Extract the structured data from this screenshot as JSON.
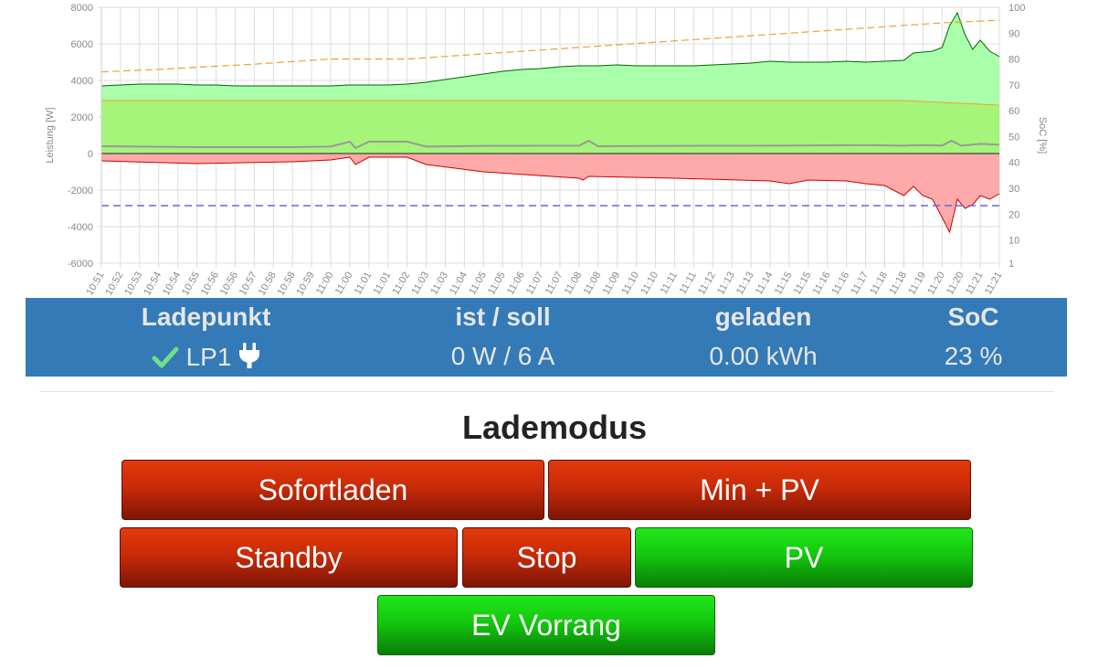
{
  "chart_data": {
    "type": "area",
    "ylabel_left": "Leistung [W]",
    "ylabel_right": "SoC [%]",
    "left_ticks": [
      8000,
      6000,
      4000,
      2000,
      0,
      -2000,
      -4000,
      -6000
    ],
    "right_ticks": [
      100,
      90,
      80,
      70,
      60,
      50,
      40,
      30,
      20,
      10,
      1
    ],
    "ylim_left": [
      -6000,
      8000
    ],
    "ylim_right": [
      1,
      100
    ],
    "grid": true,
    "x_ticks": [
      "10:51",
      "10:52",
      "10:53",
      "10:54",
      "10:54",
      "10:55",
      "10:56",
      "10:56",
      "10:57",
      "10:58",
      "10:58",
      "10:59",
      "11:00",
      "11:00",
      "11:01",
      "11:01",
      "11:02",
      "11:03",
      "11:03",
      "11:04",
      "11:05",
      "11:05",
      "11:06",
      "11:07",
      "11:07",
      "11:08",
      "11:08",
      "11:09",
      "11:10",
      "11:10",
      "11:11",
      "11:11",
      "11:12",
      "11:13",
      "11:13",
      "11:14",
      "11:15",
      "11:15",
      "11:16",
      "11:16",
      "11:17",
      "11:18",
      "11:18",
      "11:19",
      "11:20",
      "11:20",
      "11:21",
      "11:21"
    ],
    "series": [
      {
        "kind": "pv",
        "fill": "#aaffaa",
        "stroke": "#006600",
        "x": [
          0,
          1,
          2,
          3,
          4,
          5,
          6,
          7,
          8,
          9,
          10,
          11,
          12,
          13,
          14,
          15,
          16,
          17,
          18,
          19,
          20,
          21,
          22,
          23,
          24,
          25,
          26,
          27,
          28,
          29,
          30,
          31,
          32,
          33,
          34,
          35,
          36,
          37,
          38,
          39,
          40,
          41,
          42,
          42.5,
          43,
          43.5,
          44,
          44.4,
          44.8,
          45.2,
          45.6,
          46,
          46.5,
          47
        ],
        "values": [
          3700,
          3750,
          3800,
          3800,
          3800,
          3750,
          3750,
          3700,
          3700,
          3700,
          3700,
          3700,
          3700,
          3750,
          3750,
          3750,
          3800,
          3900,
          4050,
          4200,
          4350,
          4500,
          4600,
          4650,
          4750,
          4800,
          4800,
          4850,
          4800,
          4800,
          4800,
          4800,
          4850,
          4900,
          4950,
          5050,
          5000,
          5000,
          5000,
          5050,
          5000,
          5050,
          5100,
          5500,
          5550,
          5600,
          5800,
          7000,
          7700,
          6500,
          5700,
          6200,
          5600,
          5300
        ]
      },
      {
        "kind": "charging",
        "fill": "#a5f57a",
        "stroke": "#f0a030",
        "x": [
          0,
          42,
          47
        ],
        "values": [
          2900,
          2900,
          2650
        ]
      },
      {
        "kind": "load",
        "fill": "none",
        "stroke": "#999999",
        "x": [
          0,
          5,
          10,
          12,
          13,
          13.3,
          14,
          16,
          17,
          20,
          25,
          25.5,
          26,
          30,
          35,
          40,
          42,
          43,
          44,
          44.5,
          45,
          46,
          47
        ],
        "values": [
          400,
          350,
          350,
          380,
          650,
          300,
          650,
          650,
          380,
          420,
          430,
          700,
          400,
          420,
          430,
          460,
          430,
          460,
          440,
          700,
          430,
          530,
          480
        ]
      },
      {
        "kind": "grid",
        "fill": "#ffaaaa",
        "stroke": "#cc0000",
        "x": [
          0,
          5,
          10,
          12,
          13,
          13.3,
          14,
          16,
          17,
          20,
          25,
          25.2,
          25.5,
          30,
          35,
          36,
          37,
          39,
          40,
          41,
          42,
          42.5,
          43,
          43.5,
          44,
          44.4,
          44.8,
          45.2,
          45.6,
          46,
          46.5,
          47
        ],
        "values": [
          -400,
          -550,
          -450,
          -350,
          -200,
          -600,
          -200,
          -200,
          -600,
          -1000,
          -1350,
          -1450,
          -1250,
          -1350,
          -1500,
          -1650,
          -1450,
          -1500,
          -1650,
          -1750,
          -2300,
          -1800,
          -2300,
          -2500,
          -3500,
          -4300,
          -2500,
          -3000,
          -2800,
          -2300,
          -2500,
          -2200
        ]
      },
      {
        "kind": "soc",
        "stroke": "#f0a030",
        "dashed": true,
        "x": [
          0,
          3,
          8,
          12,
          16,
          20,
          24,
          28,
          32,
          36,
          40,
          44,
          47
        ],
        "values": [
          75,
          76,
          78,
          80,
          80,
          82,
          84,
          86,
          88,
          90,
          92,
          94,
          95
        ]
      },
      {
        "kind": "threshold",
        "stroke": "#6666dd",
        "dashed": true,
        "x": [
          0,
          47
        ],
        "values": [
          -2850,
          -2850
        ]
      }
    ]
  },
  "panel": {
    "headers": {
      "ladepunkt": "Ladepunkt",
      "ist_soll": "ist / soll",
      "geladen": "geladen",
      "soc": "SoC"
    },
    "row": {
      "name": "LP1",
      "ist_soll": "0 W / 6 A",
      "geladen": "0.00 kWh",
      "soc": "23 %"
    },
    "icons": {
      "status": "check-icon",
      "connector": "plug-icon"
    },
    "colors": {
      "background": "#337ab7",
      "check": "#6ee08a"
    }
  },
  "mode": {
    "title": "Lademodus",
    "buttons": {
      "sofortladen": "Sofortladen",
      "minpv": "Min + PV",
      "standby": "Standby",
      "stop": "Stop",
      "pv": "PV",
      "ev_vorrang": "EV Vorrang"
    },
    "active_colors": {
      "inactive": "#c92a08",
      "active": "#14c80e"
    }
  }
}
